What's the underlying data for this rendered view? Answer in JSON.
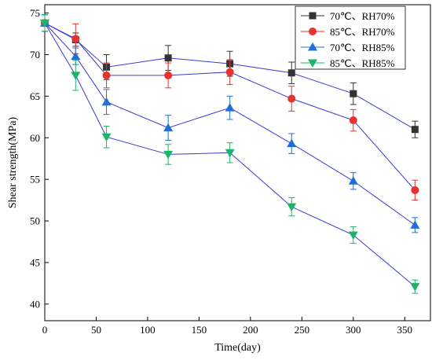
{
  "chart_data": {
    "type": "line",
    "title": "",
    "xlabel": "Time(day)",
    "ylabel": "Shear strength(MPa)",
    "xlim": [
      0,
      375
    ],
    "ylim": [
      38,
      76
    ],
    "xticks": [
      0,
      50,
      100,
      150,
      200,
      250,
      300,
      350
    ],
    "yticks": [
      40,
      45,
      50,
      55,
      60,
      65,
      70,
      75
    ],
    "x_tick_labels": [
      "0",
      "50",
      "100",
      "150",
      "200",
      "250",
      "300",
      "350"
    ],
    "y_tick_labels": [
      "40",
      "45",
      "50",
      "55",
      "60",
      "65",
      "70",
      "75"
    ],
    "grid": false,
    "legend_position": "top-right",
    "x": [
      0,
      30,
      60,
      120,
      180,
      240,
      300,
      360
    ],
    "series": [
      {
        "name": "70℃、RH70%",
        "color": "#333333",
        "marker": "square",
        "values": [
          73.8,
          71.8,
          68.5,
          69.6,
          68.9,
          67.8,
          65.3,
          61.0
        ],
        "errors": [
          1.0,
          0.8,
          1.5,
          1.5,
          1.5,
          1.3,
          1.3,
          1.0
        ]
      },
      {
        "name": "85℃、RH70%",
        "color": "#e8322f",
        "marker": "circle",
        "values": [
          73.8,
          71.9,
          67.5,
          67.5,
          67.9,
          64.7,
          62.1,
          53.7
        ],
        "errors": [
          1.0,
          1.8,
          1.5,
          1.5,
          1.5,
          1.5,
          1.3,
          1.2
        ]
      },
      {
        "name": "70℃、RH85%",
        "color": "#1f6fd6",
        "marker": "triangle-up",
        "values": [
          73.8,
          69.8,
          64.3,
          61.2,
          63.6,
          59.3,
          54.8,
          49.5
        ],
        "errors": [
          1.0,
          1.0,
          1.5,
          1.5,
          1.4,
          1.2,
          1.0,
          0.9
        ]
      },
      {
        "name": "85℃、RH85%",
        "color": "#1db36b",
        "marker": "triangle-down",
        "values": [
          73.8,
          67.5,
          60.1,
          58.0,
          58.2,
          51.7,
          48.3,
          42.1
        ],
        "errors": [
          1.0,
          1.8,
          1.3,
          1.2,
          1.2,
          1.1,
          1.0,
          0.8
        ]
      }
    ],
    "line_color": "#3a3ad0"
  }
}
